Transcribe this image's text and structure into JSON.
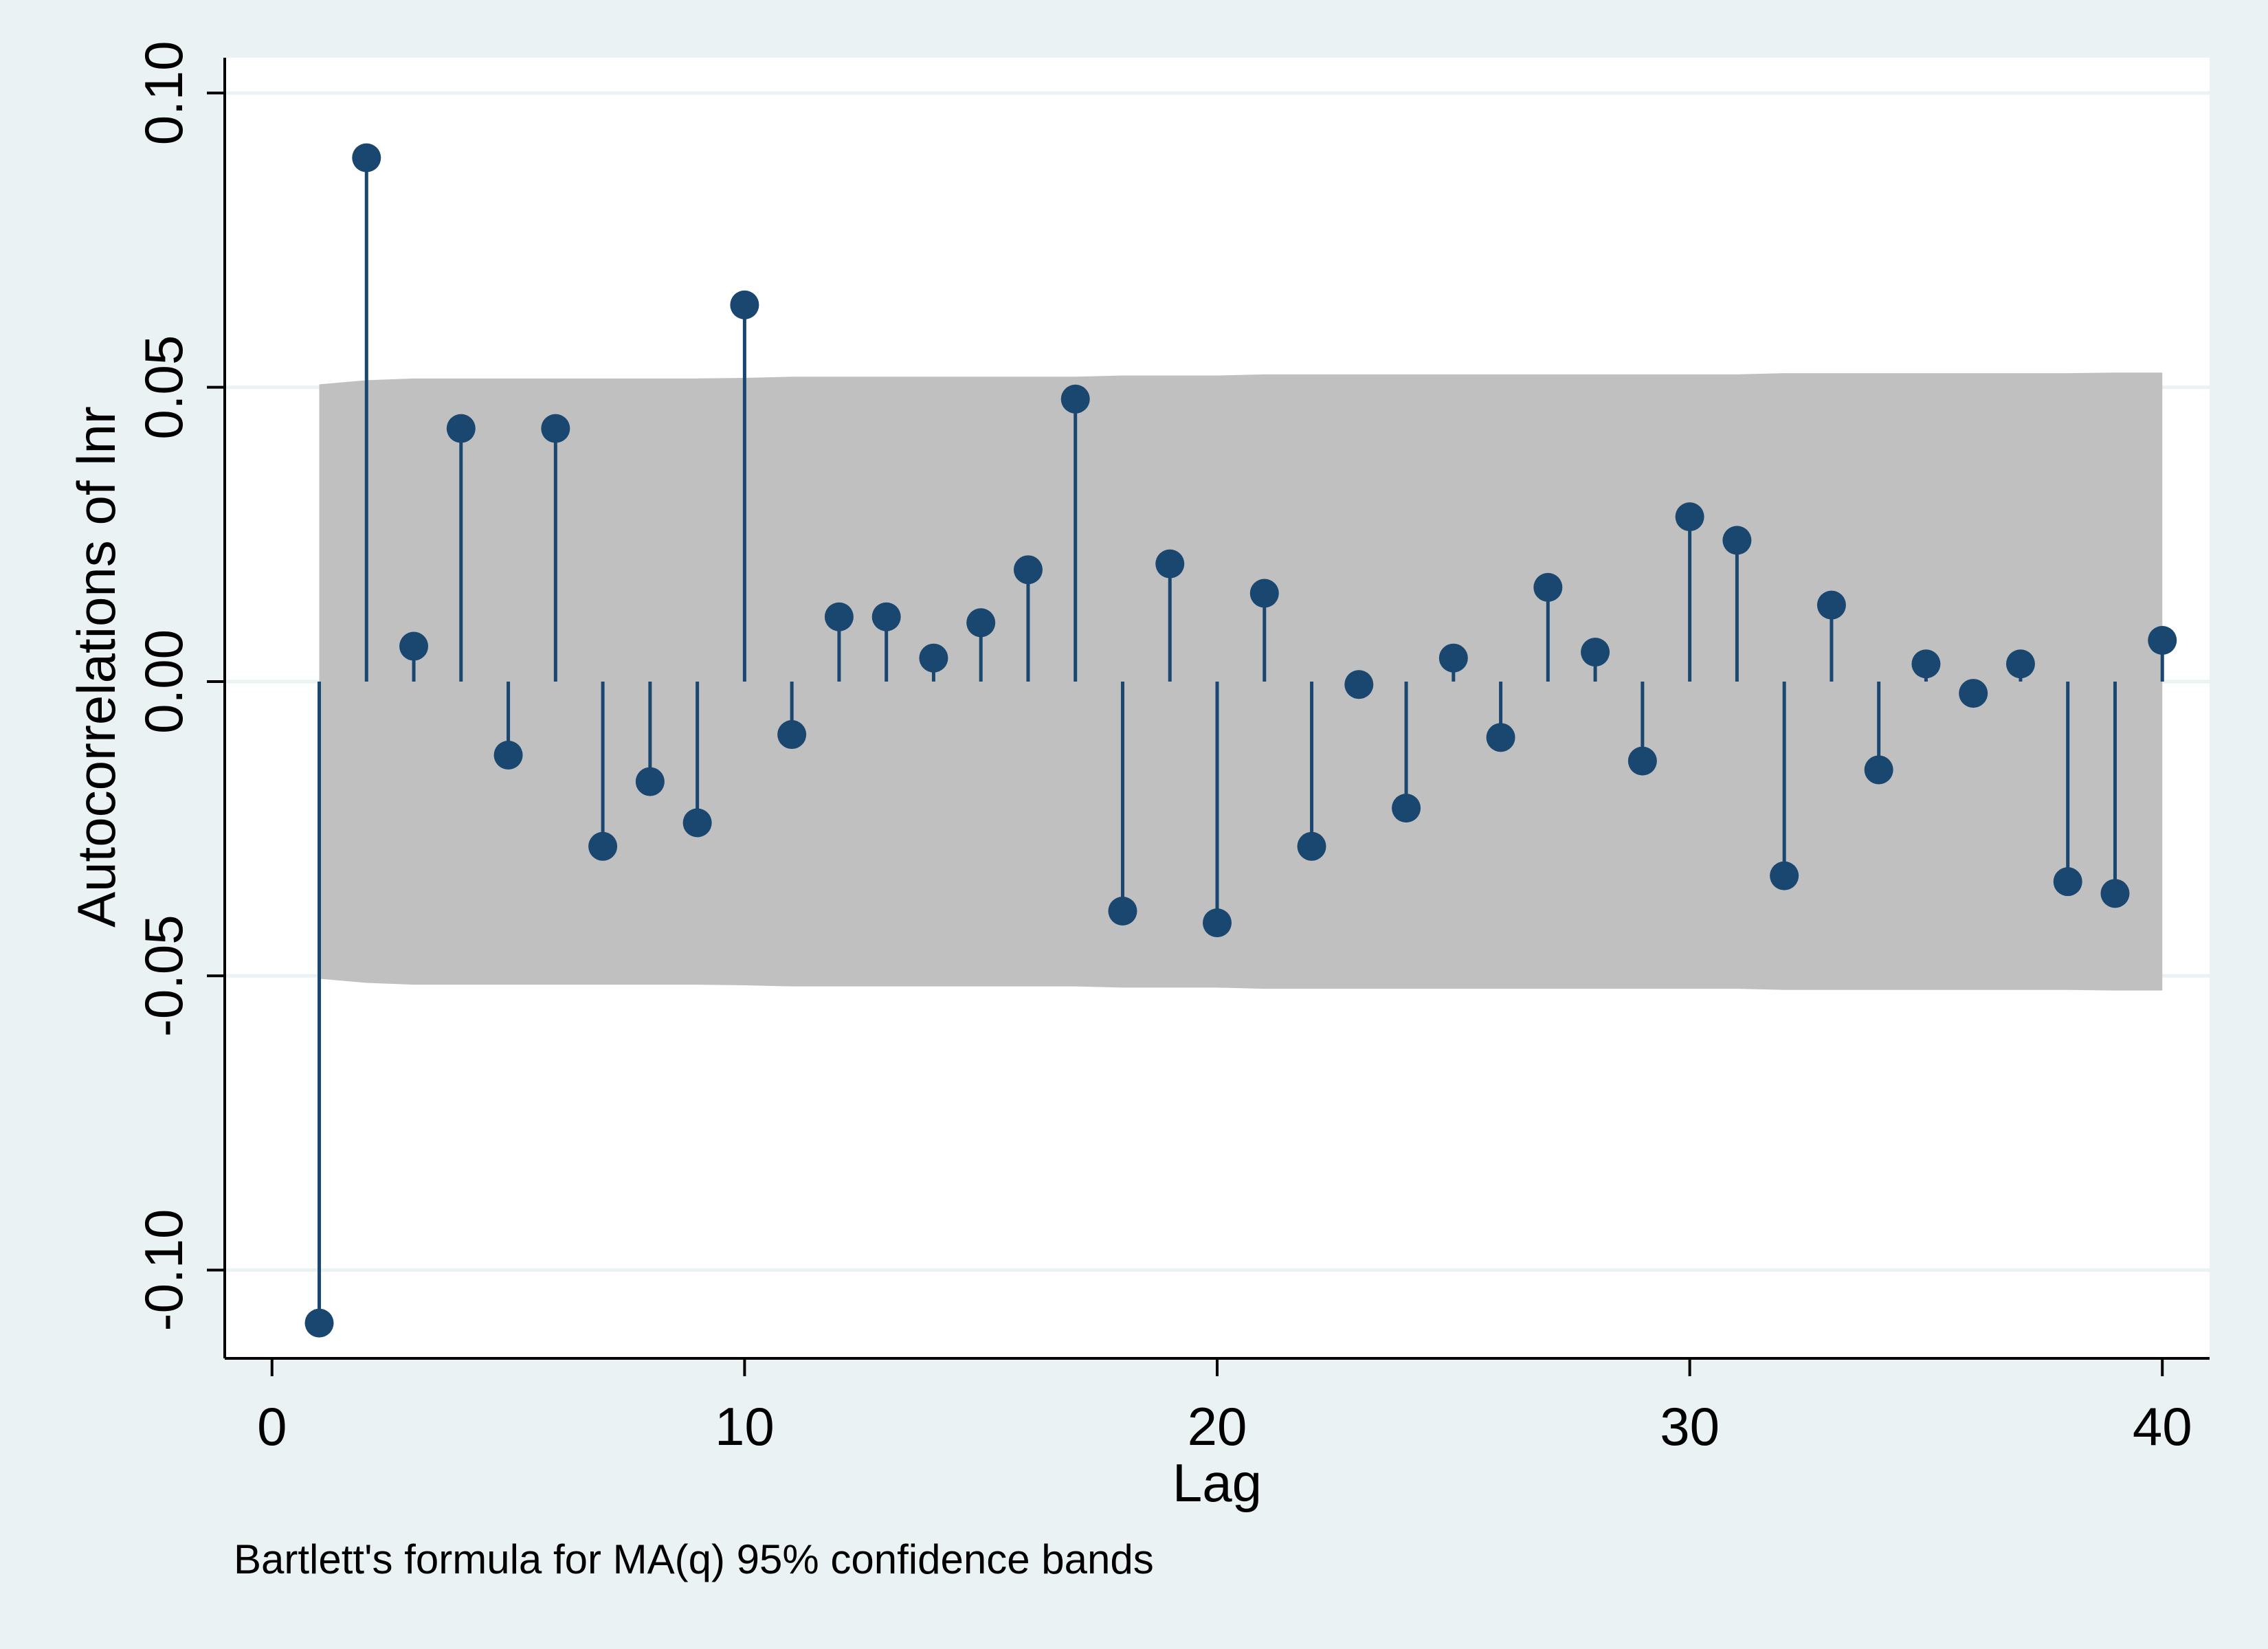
{
  "chart_data": {
    "type": "bar",
    "ylabel": "Autocorrelations of lnr",
    "xlabel": "Lag",
    "note": "Bartlett's formula for MA(q) 95% confidence bands",
    "xlim": [
      -1,
      41
    ],
    "ylim": [
      -0.115,
      0.106
    ],
    "xticks": [
      0,
      10,
      20,
      30,
      40
    ],
    "xtick_labels": [
      "0",
      "10",
      "20",
      "30",
      "40"
    ],
    "yticks": [
      -0.1,
      -0.05,
      0.0,
      0.05,
      0.1
    ],
    "ytick_labels": [
      "-0.10",
      "-0.05",
      "0.00",
      "0.05",
      "0.10"
    ],
    "grid": true,
    "colors": {
      "background": "#eaf2f3",
      "plot": "#ffffff",
      "band": "#c0c0c0",
      "marker": "#1a476f",
      "grid": "#eaf2f3"
    },
    "lags": [
      1,
      2,
      3,
      4,
      5,
      6,
      7,
      8,
      9,
      10,
      11,
      12,
      13,
      14,
      15,
      16,
      17,
      18,
      19,
      20,
      21,
      22,
      23,
      24,
      25,
      26,
      27,
      28,
      29,
      30,
      31,
      32,
      33,
      34,
      35,
      36,
      37,
      38,
      39,
      40
    ],
    "values": [
      -0.109,
      0.089,
      0.006,
      0.043,
      -0.0125,
      0.043,
      -0.028,
      -0.017,
      -0.024,
      0.064,
      -0.009,
      0.011,
      0.011,
      0.004,
      0.01,
      0.019,
      0.048,
      -0.039,
      0.02,
      -0.041,
      0.015,
      -0.028,
      -0.0005,
      -0.0215,
      0.004,
      -0.0095,
      0.016,
      0.005,
      -0.0135,
      0.028,
      0.024,
      -0.033,
      0.013,
      -0.015,
      0.003,
      -0.002,
      0.003,
      -0.034,
      -0.036,
      0.007
    ],
    "band_upper": [
      0.0505,
      0.0512,
      0.0515,
      0.0515,
      0.0515,
      0.0515,
      0.0515,
      0.0515,
      0.0515,
      0.0516,
      0.0518,
      0.0518,
      0.0518,
      0.0518,
      0.0518,
      0.0518,
      0.0518,
      0.052,
      0.052,
      0.052,
      0.0522,
      0.0522,
      0.0522,
      0.0522,
      0.0522,
      0.0522,
      0.0522,
      0.0522,
      0.0522,
      0.0522,
      0.0522,
      0.0524,
      0.0524,
      0.0524,
      0.0524,
      0.0524,
      0.0524,
      0.0524,
      0.0525,
      0.0525
    ]
  }
}
